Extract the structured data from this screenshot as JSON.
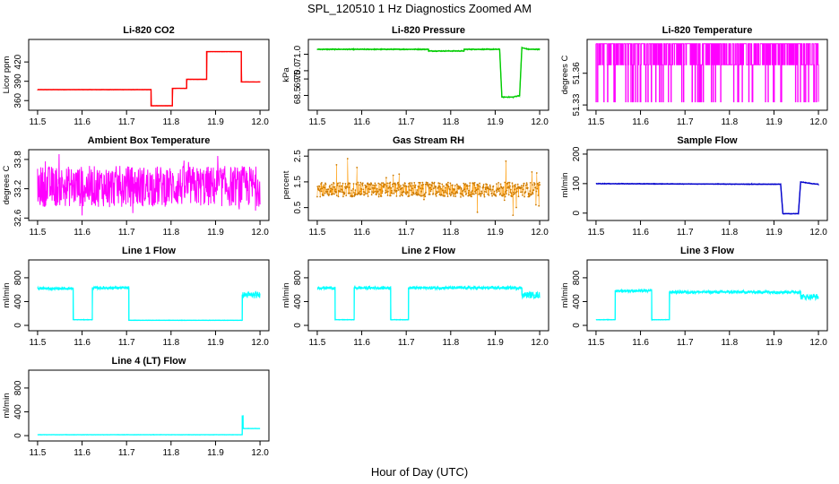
{
  "figure": {
    "title": "SPL_120510  1 Hz Diagnostics Zoomed AM",
    "xlabel": "Hour of Day (UTC)"
  },
  "chart_data": [
    {
      "type": "line",
      "title": "Li-820 CO2",
      "xlabel": "",
      "ylabel": "Licor ppm",
      "color": "#ff0000",
      "noise": 0.25,
      "xlim": [
        11.48,
        12.02
      ],
      "ylim": [
        345,
        455
      ],
      "xticks": [
        11.5,
        11.6,
        11.7,
        11.8,
        11.9,
        12.0
      ],
      "xtick_labels": [
        "11.5",
        "11.6",
        "11.7",
        "11.8",
        "11.9",
        "12.0"
      ],
      "yticks": [
        360,
        390,
        420
      ],
      "ytick_labels": [
        "360",
        "390",
        "420"
      ],
      "series": [
        {
          "x": [
            11.5,
            11.755,
            11.755,
            11.803,
            11.803,
            11.835,
            11.835,
            11.88,
            11.88,
            11.958,
            11.958,
            12.0
          ],
          "y": [
            377,
            377,
            352,
            352,
            379,
            379,
            393,
            393,
            436,
            436,
            389,
            389
          ]
        }
      ]
    },
    {
      "type": "line",
      "title": "Li-820 Pressure",
      "xlabel": "",
      "ylabel": "kPa",
      "color": "#00cc00",
      "noise": 0.04,
      "xlim": [
        11.48,
        12.02
      ],
      "ylim": [
        67.6,
        71.9
      ],
      "xticks": [
        11.5,
        11.6,
        11.7,
        11.8,
        11.9,
        12.0
      ],
      "xtick_labels": [
        "11.5",
        "11.6",
        "11.7",
        "11.8",
        "11.9",
        "12.0"
      ],
      "yticks": [
        68.5,
        69.5,
        70.0,
        71.0
      ],
      "ytick_labels": [
        "68.5",
        "69.5",
        "70.0",
        "71.0"
      ],
      "series": [
        {
          "x": [
            11.5,
            11.75,
            11.75,
            11.83,
            11.83,
            11.91,
            11.915,
            11.94,
            11.955,
            11.96,
            11.975,
            12.0
          ],
          "y": [
            71.3,
            71.3,
            71.2,
            71.2,
            71.3,
            71.3,
            68.4,
            68.4,
            68.5,
            71.4,
            71.3,
            71.3
          ]
        }
      ]
    },
    {
      "type": "line",
      "title": "Li-820 Temperature",
      "xlabel": "",
      "ylabel": "degrees C",
      "color": "#ff00ff",
      "style": "toggle",
      "xlim": [
        11.48,
        12.02
      ],
      "ylim": [
        51.325,
        51.392
      ],
      "xticks": [
        11.5,
        11.6,
        11.7,
        11.8,
        11.9,
        12.0
      ],
      "xtick_labels": [
        "11.5",
        "11.6",
        "11.7",
        "11.8",
        "11.9",
        "12.0"
      ],
      "yticks": [
        51.33,
        51.36
      ],
      "ytick_labels": [
        "51.33",
        "51.36"
      ],
      "levels": [
        51.333,
        51.368,
        51.388
      ],
      "series": [
        {
          "x": [
            11.5,
            12.0
          ],
          "y": [
            51.333,
            51.388
          ]
        }
      ]
    },
    {
      "type": "line",
      "title": "Ambient Box Temperature",
      "xlabel": "",
      "ylabel": "degrees C",
      "color": "#ff00ff",
      "style": "band",
      "xlim": [
        11.48,
        12.02
      ],
      "ylim": [
        32.55,
        34.0
      ],
      "xticks": [
        11.5,
        11.6,
        11.7,
        11.8,
        11.9,
        12.0
      ],
      "xtick_labels": [
        "11.5",
        "11.6",
        "11.7",
        "11.8",
        "11.9",
        "12.0"
      ],
      "yticks": [
        32.6,
        33.2,
        33.8
      ],
      "ytick_labels": [
        "32.6",
        "33.2",
        "33.8"
      ],
      "series": [
        {
          "x": [
            11.5,
            12.0
          ],
          "y": [
            32.65,
            33.85
          ]
        }
      ]
    },
    {
      "type": "line",
      "title": "Gas Stream RH",
      "xlabel": "",
      "ylabel": "percent",
      "color": "#ff9900",
      "style": "band",
      "lineWidth": 0.5,
      "dots": true,
      "xlim": [
        11.48,
        12.02
      ],
      "ylim": [
        0.0,
        2.75
      ],
      "xticks": [
        11.5,
        11.6,
        11.7,
        11.8,
        11.9,
        12.0
      ],
      "xtick_labels": [
        "11.5",
        "11.6",
        "11.7",
        "11.8",
        "11.9",
        "12.0"
      ],
      "yticks": [
        0.5,
        1.5,
        2.5
      ],
      "ytick_labels": [
        "0.5",
        "1.5",
        "2.5"
      ],
      "series": [
        {
          "x": [
            11.5,
            12.0
          ],
          "y": [
            0.8,
            1.6
          ]
        }
      ]
    },
    {
      "type": "line",
      "title": "Sample Flow",
      "xlabel": "",
      "ylabel": "ml/min",
      "color": "#0000cc",
      "noise": 1.5,
      "xlim": [
        11.48,
        12.02
      ],
      "ylim": [
        -25,
        215
      ],
      "xticks": [
        11.5,
        11.6,
        11.7,
        11.8,
        11.9,
        12.0
      ],
      "xtick_labels": [
        "11.5",
        "11.6",
        "11.7",
        "11.8",
        "11.9",
        "12.0"
      ],
      "yticks": [
        0,
        100,
        200
      ],
      "ytick_labels": [
        "0",
        "100",
        "200"
      ],
      "series": [
        {
          "x": [
            11.5,
            11.85,
            11.915,
            11.92,
            11.955,
            11.96,
            11.985,
            12.0
          ],
          "y": [
            100,
            98,
            98,
            -2,
            -2,
            106,
            100,
            98
          ]
        }
      ]
    },
    {
      "type": "line",
      "title": "Line 1 Flow",
      "xlabel": "",
      "ylabel": "ml/min",
      "color": "#00ffff",
      "style": "thick",
      "xlim": [
        11.48,
        12.02
      ],
      "ylim": [
        -90,
        1100
      ],
      "xticks": [
        11.5,
        11.6,
        11.7,
        11.8,
        11.9,
        12.0
      ],
      "xtick_labels": [
        "11.5",
        "11.6",
        "11.7",
        "11.8",
        "11.9",
        "12.0"
      ],
      "yticks": [
        0,
        400,
        800
      ],
      "ytick_labels": [
        "0",
        "400",
        "800"
      ],
      "series": [
        {
          "x": [
            11.5,
            11.58,
            11.58,
            11.623,
            11.623,
            11.705,
            11.705,
            11.96,
            11.96,
            12.0
          ],
          "y": [
            620,
            620,
            95,
            95,
            630,
            630,
            85,
            85,
            510,
            510
          ],
          "band": [
            50,
            50,
            10,
            10,
            50,
            50,
            8,
            8,
            110,
            110
          ]
        }
      ]
    },
    {
      "type": "line",
      "title": "Line 2 Flow",
      "xlabel": "",
      "ylabel": "ml/min",
      "color": "#00ffff",
      "style": "thick",
      "xlim": [
        11.48,
        12.02
      ],
      "ylim": [
        -90,
        1100
      ],
      "xticks": [
        11.5,
        11.6,
        11.7,
        11.8,
        11.9,
        12.0
      ],
      "xtick_labels": [
        "11.5",
        "11.6",
        "11.7",
        "11.8",
        "11.9",
        "12.0"
      ],
      "yticks": [
        0,
        400,
        800
      ],
      "ytick_labels": [
        "0",
        "400",
        "800"
      ],
      "series": [
        {
          "x": [
            11.5,
            11.54,
            11.54,
            11.583,
            11.583,
            11.665,
            11.665,
            11.705,
            11.705,
            11.96,
            11.96,
            12.0
          ],
          "y": [
            630,
            630,
            95,
            95,
            630,
            630,
            95,
            95,
            630,
            630,
            510,
            510
          ],
          "band": [
            55,
            55,
            10,
            10,
            55,
            55,
            10,
            10,
            55,
            55,
            110,
            110
          ]
        }
      ]
    },
    {
      "type": "line",
      "title": "Line 3 Flow",
      "xlabel": "",
      "ylabel": "ml/min",
      "color": "#00ffff",
      "style": "thick",
      "xlim": [
        11.48,
        12.02
      ],
      "ylim": [
        -90,
        1100
      ],
      "xticks": [
        11.5,
        11.6,
        11.7,
        11.8,
        11.9,
        12.0
      ],
      "xtick_labels": [
        "11.5",
        "11.6",
        "11.7",
        "11.8",
        "11.9",
        "12.0"
      ],
      "yticks": [
        0,
        400,
        800
      ],
      "ytick_labels": [
        "0",
        "400",
        "800"
      ],
      "series": [
        {
          "x": [
            11.5,
            11.543,
            11.543,
            11.625,
            11.625,
            11.665,
            11.665,
            11.96,
            11.96,
            12.0
          ],
          "y": [
            95,
            95,
            580,
            580,
            95,
            95,
            560,
            560,
            480,
            480
          ],
          "band": [
            10,
            10,
            50,
            50,
            10,
            10,
            55,
            55,
            100,
            100
          ]
        }
      ]
    },
    {
      "type": "line",
      "title": "Line 4 (LT) Flow",
      "xlabel": "",
      "ylabel": "ml/min",
      "color": "#00ffff",
      "style": "thick",
      "xlim": [
        11.48,
        12.02
      ],
      "ylim": [
        -90,
        1100
      ],
      "xticks": [
        11.5,
        11.6,
        11.7,
        11.8,
        11.9,
        12.0
      ],
      "xtick_labels": [
        "11.5",
        "11.6",
        "11.7",
        "11.8",
        "11.9",
        "12.0"
      ],
      "yticks": [
        0,
        400,
        800
      ],
      "ytick_labels": [
        "0",
        "400",
        "800"
      ],
      "series": [
        {
          "x": [
            11.5,
            11.96,
            11.96,
            11.962,
            11.962,
            12.0
          ],
          "y": [
            15,
            15,
            330,
            330,
            120,
            120
          ],
          "band": [
            6,
            6,
            6,
            6,
            8,
            8
          ]
        }
      ]
    }
  ]
}
